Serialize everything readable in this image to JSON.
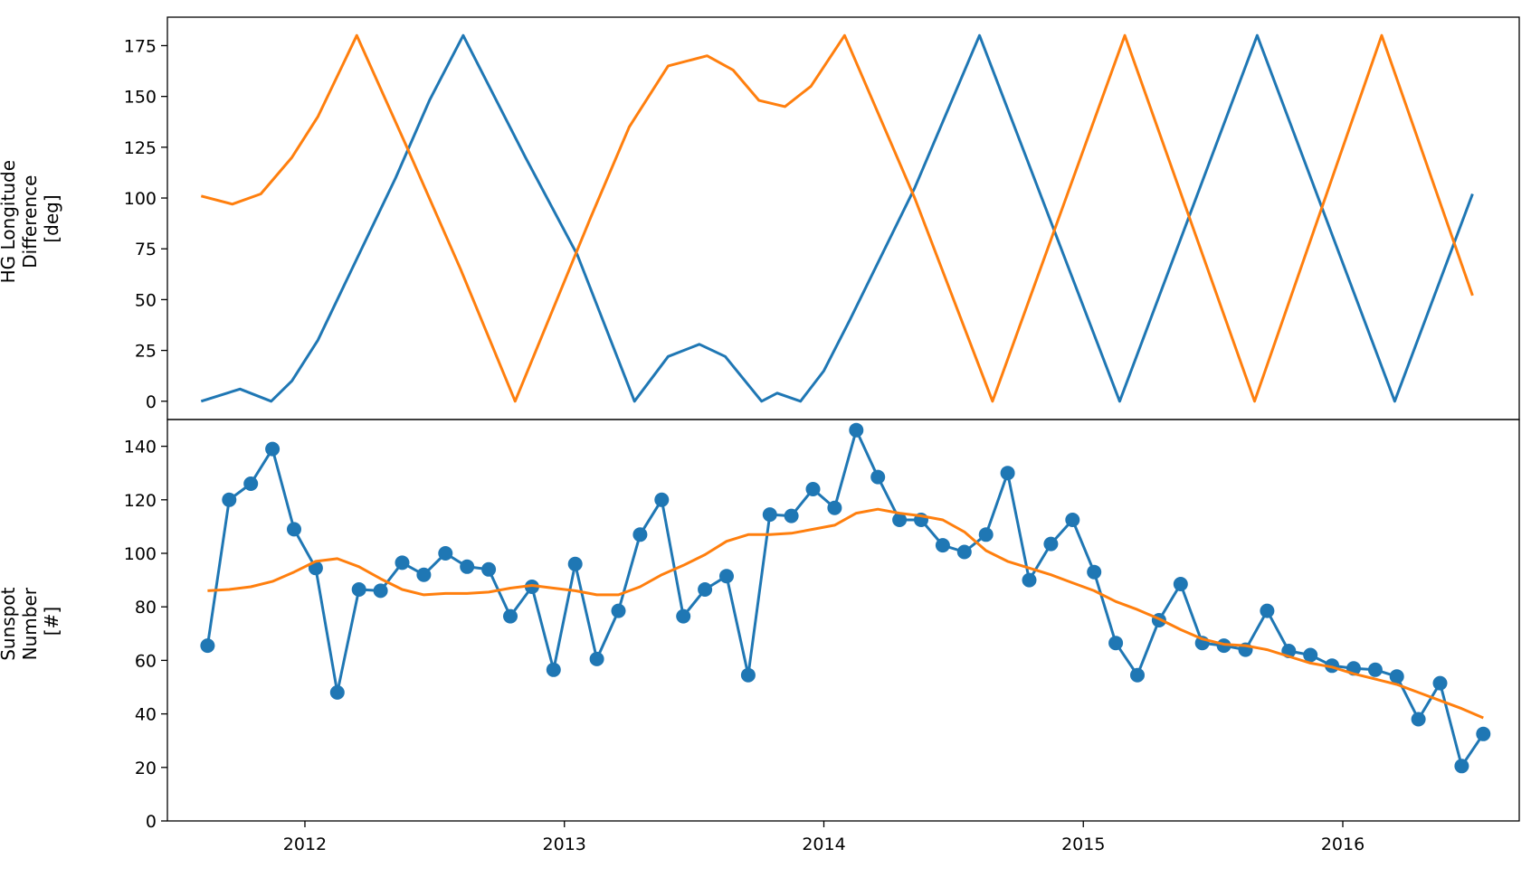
{
  "colors": {
    "series_1": "#1f77b4",
    "series_2": "#ff7f0e"
  },
  "chart_data": [
    {
      "type": "line",
      "title": "",
      "ylabel": [
        "HG Longitude",
        "Difference",
        "[deg]"
      ],
      "xlabel": "",
      "x_start": "2011-08",
      "ylim": [
        -9,
        189
      ],
      "yticks": [
        0,
        25,
        50,
        75,
        100,
        125,
        150,
        175
      ],
      "grid": false,
      "series": [
        {
          "color": "#1f77b4",
          "points": [
            [
              2011.6,
              0
            ],
            [
              2011.75,
              6
            ],
            [
              2011.87,
              0
            ],
            [
              2011.95,
              10
            ],
            [
              2012.05,
              30
            ],
            [
              2012.2,
              70
            ],
            [
              2012.35,
              110
            ],
            [
              2012.48,
              148
            ],
            [
              2012.61,
              180
            ],
            [
              2012.85,
              120
            ],
            [
              2013.05,
              72
            ],
            [
              2013.27,
              0
            ],
            [
              2013.4,
              22
            ],
            [
              2013.52,
              28
            ],
            [
              2013.62,
              22
            ],
            [
              2013.76,
              0
            ],
            [
              2013.82,
              4
            ],
            [
              2013.91,
              0
            ],
            [
              2014.0,
              15
            ],
            [
              2014.1,
              40
            ],
            [
              2014.35,
              105
            ],
            [
              2014.6,
              180
            ],
            [
              2015.14,
              0
            ],
            [
              2015.67,
              180
            ],
            [
              2016.2,
              0
            ],
            [
              2016.5,
              102
            ]
          ]
        },
        {
          "color": "#ff7f0e",
          "points": [
            [
              2011.6,
              101
            ],
            [
              2011.72,
              97
            ],
            [
              2011.83,
              102
            ],
            [
              2011.95,
              120
            ],
            [
              2012.05,
              140
            ],
            [
              2012.2,
              180
            ],
            [
              2012.4,
              123
            ],
            [
              2012.6,
              65
            ],
            [
              2012.81,
              0
            ],
            [
              2013.1,
              90
            ],
            [
              2013.25,
              135
            ],
            [
              2013.4,
              165
            ],
            [
              2013.55,
              170
            ],
            [
              2013.65,
              163
            ],
            [
              2013.75,
              148
            ],
            [
              2013.85,
              145
            ],
            [
              2013.95,
              155
            ],
            [
              2014.08,
              180
            ],
            [
              2014.35,
              100
            ],
            [
              2014.65,
              0
            ],
            [
              2015.16,
              180
            ],
            [
              2015.66,
              0
            ],
            [
              2016.15,
              180
            ],
            [
              2016.5,
              52
            ]
          ]
        }
      ]
    },
    {
      "type": "line",
      "title": "",
      "ylabel": [
        "Sunspot",
        "Number",
        "[#]"
      ],
      "xlabel": "",
      "x_start": "2011-08",
      "ylim": [
        0,
        150
      ],
      "yticks": [
        0,
        20,
        40,
        60,
        80,
        100,
        120,
        140
      ],
      "xticks": [
        2012,
        2013,
        2014,
        2015,
        2016
      ],
      "grid": false,
      "series": [
        {
          "color": "#1f77b4",
          "markers": true,
          "values": [
            65.5,
            120,
            126,
            139,
            109,
            94.5,
            48,
            86.5,
            86,
            96.5,
            92,
            100,
            95,
            94,
            76.5,
            87.5,
            56.5,
            96,
            60.5,
            78.5,
            107,
            120,
            76.5,
            86.5,
            91.5,
            54.5,
            114.5,
            114,
            124,
            117,
            146,
            128.5,
            112.5,
            112.5,
            103,
            100.5,
            107,
            130,
            90,
            103.5,
            112.5,
            93,
            66.5,
            54.5,
            75,
            88.5,
            66.5,
            65.5,
            64,
            78.5,
            63.5,
            62,
            58,
            57,
            56.5,
            54,
            38,
            51.5,
            20.5,
            32.5
          ]
        },
        {
          "color": "#ff7f0e",
          "markers": false,
          "values": [
            86,
            86.5,
            87.5,
            89.5,
            93,
            97,
            98,
            95,
            90.5,
            86.5,
            84.5,
            85,
            85,
            85.5,
            87,
            88,
            87,
            86,
            84.5,
            84.5,
            87.5,
            92,
            95.5,
            99.5,
            104.5,
            107,
            107,
            107.5,
            109,
            110.5,
            115,
            116.5,
            115,
            114,
            112.5,
            108,
            101,
            97,
            94.5,
            92,
            89,
            86,
            82,
            79,
            75.5,
            71.5,
            68,
            66,
            65.5,
            64,
            61.5,
            59,
            57.5,
            55,
            53,
            51,
            48,
            45,
            42,
            38.5
          ]
        }
      ]
    }
  ]
}
